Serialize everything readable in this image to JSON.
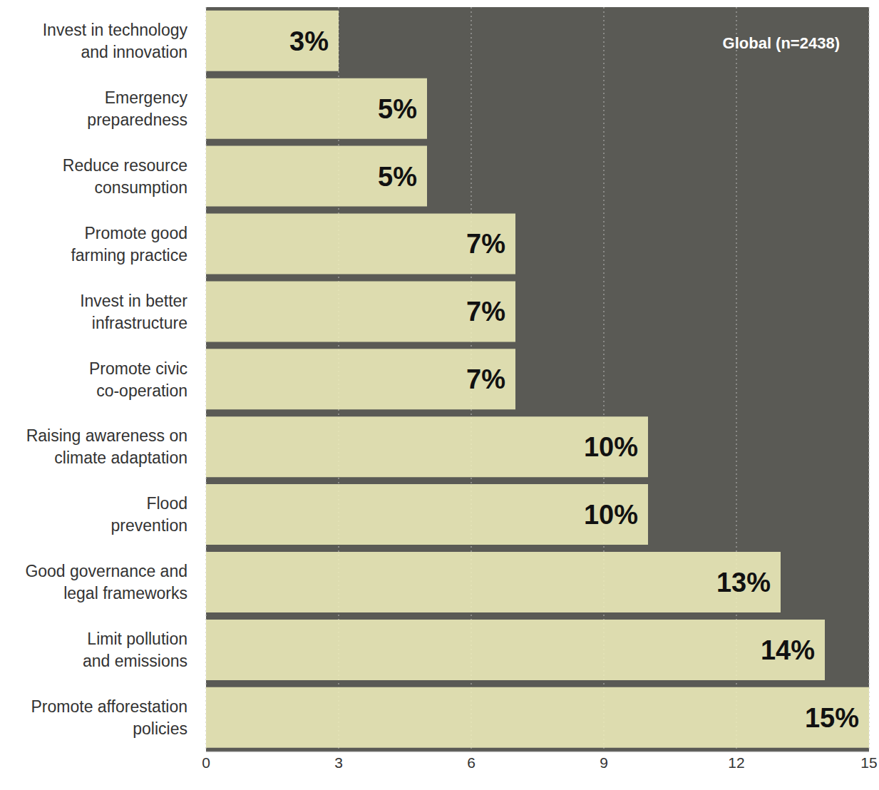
{
  "chart_data": {
    "type": "bar",
    "title": "Global (n=2438)",
    "orientation": "horizontal",
    "categories": [
      "Invest in technology and innovation",
      "Emergency preparedness",
      "Reduce resource consumption",
      "Promote good farming practice",
      "Invest in better infrastructure",
      "Promote civic co-operation",
      "Raising awareness on climate adaptation",
      "Flood prevention",
      "Good governance and legal frameworks",
      "Limit pollution and emissions",
      "Promote afforestation policies"
    ],
    "values": [
      3,
      5,
      5,
      7,
      7,
      7,
      10,
      10,
      13,
      14,
      15
    ],
    "value_labels": [
      "3%",
      "5%",
      "5%",
      "7%",
      "7%",
      "7%",
      "10%",
      "10%",
      "13%",
      "14%",
      "15%"
    ],
    "color": "#efeebc",
    "xlim": [
      0,
      15
    ],
    "xticks": [
      0,
      3,
      6,
      9,
      12,
      15
    ],
    "grid": true,
    "data_labels": true
  }
}
